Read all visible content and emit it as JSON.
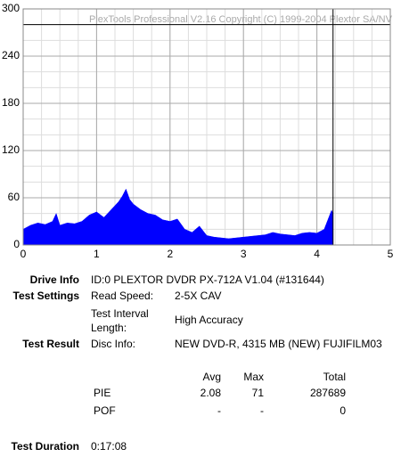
{
  "chart_data": {
    "type": "area",
    "watermark": "PlexTools Professional V2.16 Copyright (C) 1999-2004 Plextor SA/NV",
    "x": [
      0,
      0.1,
      0.2,
      0.3,
      0.4,
      0.45,
      0.5,
      0.6,
      0.7,
      0.8,
      0.9,
      1.0,
      1.1,
      1.2,
      1.3,
      1.35,
      1.4,
      1.45,
      1.5,
      1.6,
      1.7,
      1.8,
      1.9,
      2.0,
      2.1,
      2.2,
      2.3,
      2.4,
      2.5,
      2.6,
      2.7,
      2.8,
      2.9,
      3.0,
      3.1,
      3.2,
      3.3,
      3.4,
      3.5,
      3.6,
      3.7,
      3.8,
      3.9,
      4.0,
      4.1,
      4.15,
      4.2,
      4.22
    ],
    "values": [
      20,
      25,
      28,
      26,
      30,
      40,
      25,
      28,
      27,
      30,
      38,
      42,
      35,
      45,
      55,
      62,
      71,
      58,
      52,
      45,
      40,
      38,
      32,
      30,
      33,
      20,
      16,
      24,
      12,
      10,
      9,
      8,
      9,
      10,
      11,
      12,
      13,
      16,
      14,
      13,
      12,
      15,
      16,
      15,
      20,
      32,
      44,
      40
    ],
    "color": "#0000ff",
    "xlim": [
      0,
      5
    ],
    "xticks": [
      0,
      1,
      2,
      3,
      4,
      5
    ],
    "ylim": [
      0,
      300
    ],
    "yticks": [
      0,
      60,
      120,
      180,
      240,
      300
    ],
    "grid": true,
    "minor_grid": {
      "x": 0.25,
      "y": 20
    },
    "threshold": 280,
    "end_marker": 4.22
  },
  "info": {
    "drive_info": {
      "label": "Drive Info",
      "value": "ID:0 PLEXTOR DVDR PX-712A V1.04 (#131644)"
    },
    "test_settings": {
      "label": "Test Settings",
      "read_speed": {
        "label": "Read Speed:",
        "value": "2-5X CAV"
      },
      "interval": {
        "label": [
          "Test Interval",
          "Length:"
        ],
        "value": "High Accuracy"
      }
    },
    "test_result": {
      "label": "Test Result",
      "disc_label": "Disc Info:",
      "disc_value": "NEW DVD-R, 4315 MB (NEW) FUJIFILM03"
    },
    "stats": {
      "headers": [
        "Avg",
        "Max",
        "Total"
      ],
      "rows": [
        [
          "PIE",
          2.08,
          71,
          287689
        ],
        [
          "POF",
          "-",
          "-",
          0
        ]
      ]
    },
    "test_duration": {
      "label": "Test Duration",
      "value": "0:17:08"
    }
  }
}
